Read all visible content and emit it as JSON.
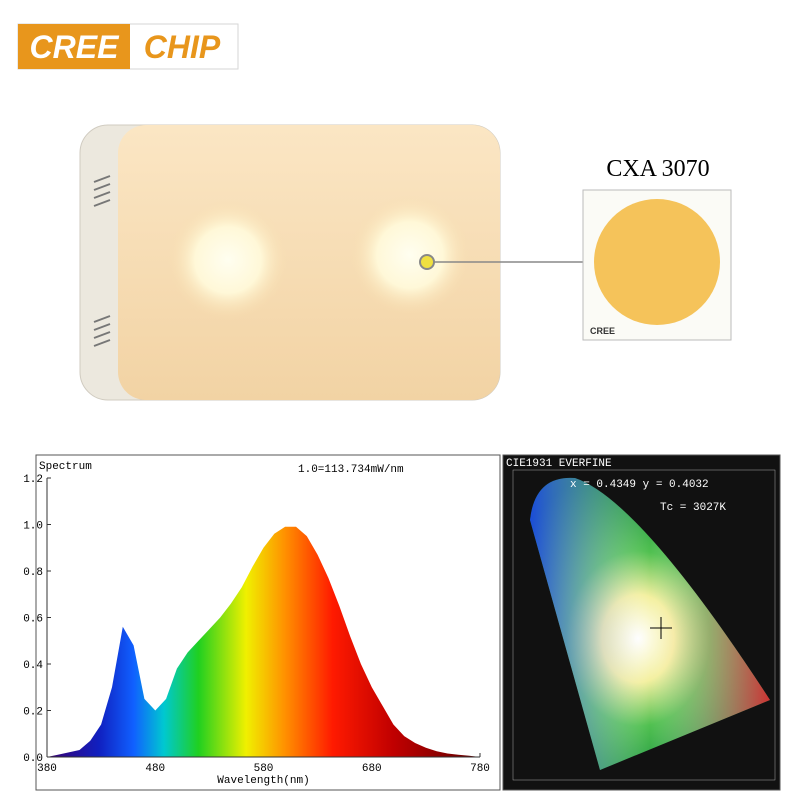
{
  "logo": {
    "word1": "CREE",
    "word2": "CHIP"
  },
  "product": {
    "chip_label": "CXA 3070",
    "chip_brand": "CREE"
  },
  "chart_data": {
    "type": "area",
    "title": "Spectrum",
    "annotation": "1.0=113.734mW/nm",
    "x_label": "Wavelength(nm)",
    "x": [
      380,
      390,
      400,
      410,
      420,
      430,
      440,
      450,
      460,
      470,
      480,
      490,
      500,
      510,
      520,
      530,
      540,
      550,
      560,
      570,
      580,
      590,
      600,
      610,
      620,
      630,
      640,
      650,
      660,
      670,
      680,
      690,
      700,
      710,
      720,
      730,
      740,
      750,
      760,
      770,
      780
    ],
    "values": [
      0,
      0.01,
      0.02,
      0.03,
      0.07,
      0.14,
      0.3,
      0.56,
      0.48,
      0.25,
      0.2,
      0.25,
      0.38,
      0.45,
      0.5,
      0.55,
      0.6,
      0.66,
      0.73,
      0.82,
      0.9,
      0.96,
      0.99,
      0.99,
      0.95,
      0.87,
      0.77,
      0.65,
      0.52,
      0.4,
      0.3,
      0.22,
      0.14,
      0.09,
      0.06,
      0.04,
      0.025,
      0.015,
      0.01,
      0.005,
      0
    ],
    "xlim": [
      380,
      780
    ],
    "xticks": [
      380,
      480,
      580,
      680,
      780
    ],
    "ylim": [
      0,
      1.2
    ],
    "yticks": [
      {
        "value": 0,
        "label": "0.0"
      },
      0.2,
      0.4,
      0.6,
      0.8,
      {
        "value": 1,
        "label": "1.0"
      },
      1.2
    ]
  },
  "cie": {
    "title": "CIE1931 EVERFINE",
    "coords": "x = 0.4349 y = 0.4032",
    "cct": "Tc = 3027K"
  }
}
